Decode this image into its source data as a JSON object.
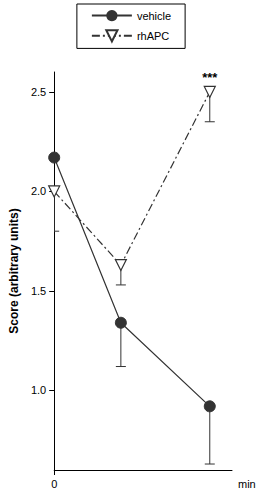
{
  "chart_data": {
    "type": "line",
    "x_label": "min",
    "y_label": "Score (arbitrary units)",
    "xlim": [
      0,
      160
    ],
    "xticks": [
      0
    ],
    "ylim": [
      0.6,
      2.6
    ],
    "yticks": [
      {
        "value": 1,
        "label": "1.0"
      },
      {
        "value": 1.5,
        "label": "1.5"
      },
      {
        "value": 2,
        "label": "2.0"
      },
      {
        "value": 2.5,
        "label": "2.5"
      }
    ],
    "grid": false,
    "legend": "top",
    "x": [
      0,
      60,
      140
    ],
    "series": [
      {
        "name": "vehicle",
        "color": "#333333",
        "marker": "circle",
        "line_style": "solid",
        "values": [
          2.17,
          1.34,
          0.92
        ],
        "errors": [
          0.0,
          0.22,
          0.29
        ]
      },
      {
        "name": "rhAPC",
        "color": "#333333",
        "marker": "triangle_down",
        "line_style": "dashdot",
        "values": [
          2.0,
          1.63,
          2.5
        ],
        "errors": [
          0.2,
          0.1,
          0.15
        ]
      }
    ],
    "annotations": [
      {
        "text": "***",
        "series": "rhAPC",
        "x": 140,
        "y": 2.5
      }
    ]
  }
}
